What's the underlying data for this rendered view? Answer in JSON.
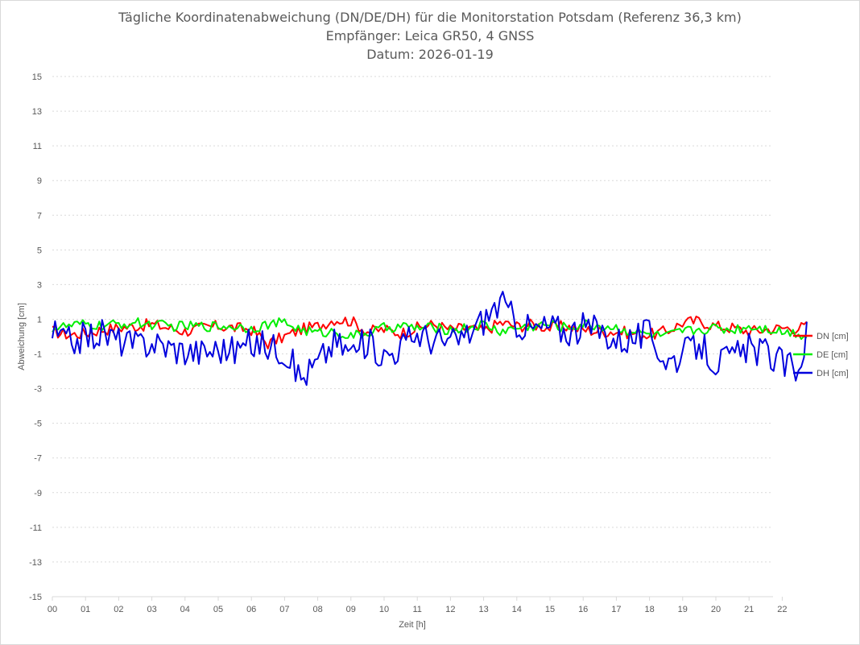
{
  "chart_data": {
    "type": "line",
    "title": "Tägliche Koordinatenabweichung (DN/DE/DH) für die Monitorstation Potsdam (Referenz 36,3 km)",
    "subtitle": "Empfänger: Leica GR50, 4 GNSS",
    "date_label": "Datum: 2026-01-19",
    "xlabel": "Zeit [h]",
    "ylabel": "Abweichung [cm]",
    "ylim": [
      -15,
      15
    ],
    "xlim": [
      0,
      24
    ],
    "y_ticks": [
      "15",
      "13",
      "11",
      "9",
      "7",
      "5",
      "3",
      "1",
      "-1",
      "-3",
      "-5",
      "-7",
      "-9",
      "-11",
      "-13",
      "-15"
    ],
    "x_ticks": [
      "00",
      "01",
      "02",
      "03",
      "04",
      "05",
      "06",
      "07",
      "08",
      "09",
      "10",
      "11",
      "12",
      "13",
      "14",
      "15",
      "16",
      "17",
      "18",
      "19",
      "20",
      "21",
      "22"
    ],
    "grid": "horizontal dashed",
    "legend_position": "right",
    "x": [
      0,
      0.5,
      1,
      1.5,
      2,
      2.5,
      3,
      3.5,
      4,
      4.5,
      5,
      5.5,
      6,
      6.5,
      7,
      7.5,
      8,
      8.5,
      9,
      9.5,
      10,
      10.5,
      11,
      11.5,
      12,
      12.5,
      13,
      13.5,
      14,
      14.5,
      15,
      15.5,
      16,
      16.5,
      17,
      17.5,
      18,
      18.5,
      19,
      19.5,
      20,
      20.5,
      21,
      21.5,
      22,
      22.5,
      22.75
    ],
    "series": [
      {
        "name": "DN [cm]",
        "color": "#ff0000",
        "values": [
          0.3,
          0.1,
          0.2,
          0.4,
          0.5,
          0.6,
          0.7,
          0.5,
          0.3,
          0.5,
          0.6,
          0.5,
          0.4,
          -0.4,
          0.0,
          0.4,
          0.6,
          1.0,
          0.9,
          0.3,
          0.4,
          0.2,
          0.5,
          0.7,
          0.4,
          0.5,
          0.3,
          0.8,
          0.6,
          0.7,
          0.5,
          0.6,
          0.4,
          0.3,
          0.3,
          0.2,
          0.1,
          0.3,
          0.8,
          0.9,
          0.6,
          0.5,
          0.3,
          0.4,
          0.5,
          0.5,
          0.6
        ]
      },
      {
        "name": "DE [cm]",
        "color": "#00ee00",
        "values": [
          0.5,
          0.6,
          0.7,
          0.6,
          0.7,
          0.8,
          0.7,
          0.6,
          0.6,
          0.6,
          0.6,
          0.6,
          0.5,
          0.7,
          0.8,
          0.4,
          0.2,
          0.3,
          0.0,
          0.2,
          0.5,
          0.6,
          0.5,
          0.5,
          0.4,
          0.5,
          0.7,
          0.3,
          0.5,
          0.6,
          0.7,
          0.5,
          0.7,
          0.6,
          0.5,
          0.3,
          0.1,
          0.0,
          0.3,
          0.4,
          0.5,
          0.4,
          0.6,
          0.5,
          0.3,
          0.2,
          0.0
        ]
      },
      {
        "name": "DH [cm]",
        "color": "#0000dd",
        "values": [
          0.2,
          -0.3,
          0.0,
          0.2,
          -0.2,
          -0.5,
          -0.3,
          -0.6,
          -0.8,
          -0.9,
          -0.7,
          -0.8,
          -0.4,
          -0.5,
          -0.8,
          -2.4,
          -1.5,
          -0.3,
          -0.9,
          -0.3,
          -1.1,
          -0.6,
          0.2,
          -0.2,
          -0.4,
          0.1,
          1.0,
          2.0,
          0.8,
          0.4,
          0.6,
          0.3,
          0.5,
          0.4,
          -0.2,
          -0.1,
          0.2,
          -1.4,
          -1.1,
          -0.4,
          -1.5,
          -1.2,
          -0.7,
          -0.9,
          -1.6,
          -1.8,
          0.3
        ]
      }
    ]
  }
}
